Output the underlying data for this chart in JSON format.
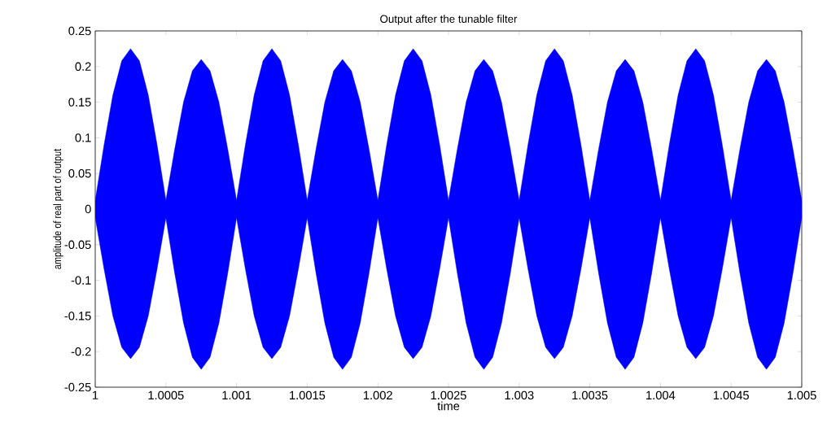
{
  "chart_data": {
    "type": "area",
    "title": "Output after the tunable filter",
    "xlabel": "time",
    "ylabel": "amplitude of real part of output",
    "x": [
      1,
      1.0000625,
      1.000125,
      1.0001875,
      1.00025,
      1.0003125,
      1.000375,
      1.0004375,
      1.0005,
      1.0005625,
      1.000625,
      1.0006875,
      1.00075,
      1.0008125,
      1.000875,
      1.0009375,
      1.001,
      1.0010625,
      1.001125,
      1.0011875,
      1.00125,
      1.0013125,
      1.001375,
      1.0014375,
      1.0015,
      1.0015625,
      1.001625,
      1.0016875,
      1.00175,
      1.0018125,
      1.001875,
      1.0019375,
      1.002,
      1.0020625,
      1.002125,
      1.0021875,
      1.00225,
      1.0023125,
      1.002375,
      1.0024375,
      1.0025,
      1.0025625,
      1.002625,
      1.0026875,
      1.00275,
      1.0028125,
      1.002875,
      1.0029375,
      1.003,
      1.0030625,
      1.003125,
      1.0031875,
      1.00325,
      1.0033125,
      1.003375,
      1.0034375,
      1.0035,
      1.0035625,
      1.003625,
      1.0036875,
      1.00375,
      1.0038125,
      1.003875,
      1.0039375,
      1.004,
      1.0040625,
      1.004125,
      1.0041875,
      1.00425,
      1.0043125,
      1.004375,
      1.0044375,
      1.0045,
      1.0045625,
      1.004625,
      1.0046875,
      1.00475,
      1.0048125,
      1.004875,
      1.0049375,
      1.005
    ],
    "series": [
      {
        "color": "#0000ff",
        "values": [
          0.012,
          0.09,
          0.16,
          0.208,
          0.225,
          0.208,
          0.16,
          0.09,
          0.012,
          0.084,
          0.15,
          0.194,
          0.21,
          0.194,
          0.15,
          0.084,
          0.012,
          0.09,
          0.16,
          0.208,
          0.225,
          0.208,
          0.16,
          0.09,
          0.012,
          0.084,
          0.15,
          0.194,
          0.21,
          0.194,
          0.15,
          0.084,
          0.012,
          0.09,
          0.16,
          0.208,
          0.225,
          0.208,
          0.16,
          0.09,
          0.012,
          0.084,
          0.15,
          0.194,
          0.21,
          0.194,
          0.15,
          0.084,
          0.012,
          0.09,
          0.16,
          0.208,
          0.225,
          0.208,
          0.16,
          0.09,
          0.012,
          0.084,
          0.15,
          0.194,
          0.21,
          0.194,
          0.15,
          0.084,
          0.012,
          0.09,
          0.16,
          0.208,
          0.225,
          0.208,
          0.16,
          0.09,
          0.012,
          0.084,
          0.15,
          0.194,
          0.21,
          0.194,
          0.15,
          0.084,
          0.012
        ]
      },
      {
        "color": "#0000ff",
        "values": [
          -0.012,
          -0.084,
          -0.15,
          -0.194,
          -0.21,
          -0.194,
          -0.15,
          -0.084,
          -0.012,
          -0.09,
          -0.16,
          -0.208,
          -0.225,
          -0.208,
          -0.16,
          -0.09,
          -0.012,
          -0.084,
          -0.15,
          -0.194,
          -0.21,
          -0.194,
          -0.15,
          -0.084,
          -0.012,
          -0.09,
          -0.16,
          -0.208,
          -0.225,
          -0.208,
          -0.16,
          -0.09,
          -0.012,
          -0.084,
          -0.15,
          -0.194,
          -0.21,
          -0.194,
          -0.15,
          -0.084,
          -0.012,
          -0.09,
          -0.16,
          -0.208,
          -0.225,
          -0.208,
          -0.16,
          -0.09,
          -0.012,
          -0.084,
          -0.15,
          -0.194,
          -0.21,
          -0.194,
          -0.15,
          -0.084,
          -0.012,
          -0.09,
          -0.16,
          -0.208,
          -0.225,
          -0.208,
          -0.16,
          -0.09,
          -0.012,
          -0.084,
          -0.15,
          -0.194,
          -0.21,
          -0.194,
          -0.15,
          -0.084,
          -0.012,
          -0.09,
          -0.16,
          -0.208,
          -0.225,
          -0.208,
          -0.16,
          -0.09,
          -0.012
        ]
      }
    ],
    "xlim": [
      1,
      1.005
    ],
    "ylim": [
      -0.25,
      0.25
    ],
    "xticks": [
      1,
      1.0005,
      1.001,
      1.0015,
      1.002,
      1.0025,
      1.003,
      1.0035,
      1.004,
      1.0045,
      1.005
    ],
    "yticks": [
      -0.25,
      -0.2,
      -0.15,
      -0.1,
      -0.05,
      0,
      0.05,
      0.1,
      0.15,
      0.2,
      0.25
    ],
    "grid": false
  }
}
